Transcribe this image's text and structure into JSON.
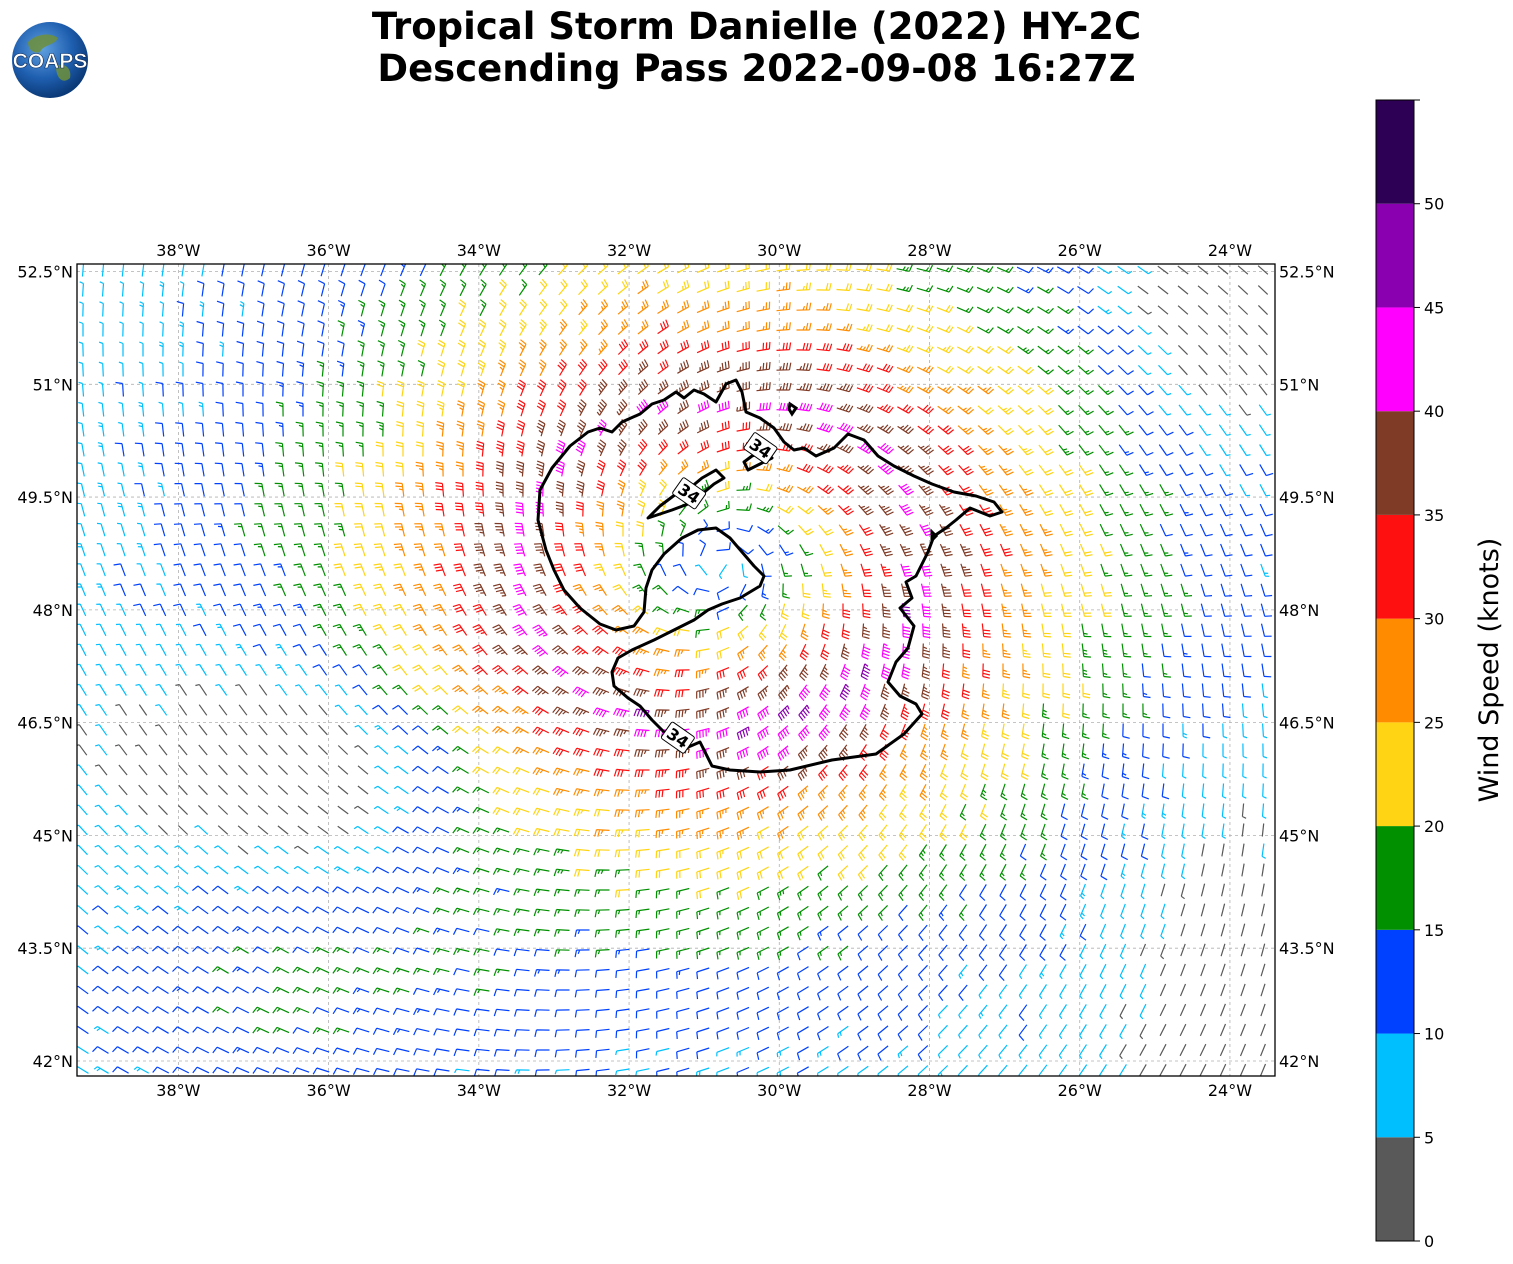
{
  "title": {
    "line1": "Tropical Storm Danielle (2022) HY-2C",
    "line2": "Descending Pass 2022-09-08 16:27Z"
  },
  "logo": {
    "text": "COAPS",
    "icon": "globe-logo-icon"
  },
  "map": {
    "lon_range": [
      -39.35,
      -23.4
    ],
    "lat_range": [
      41.8,
      52.6
    ],
    "lon_ticks": [
      -38,
      -36,
      -34,
      -32,
      -30,
      -28,
      -26,
      -24
    ],
    "lat_ticks": [
      42,
      43.5,
      45,
      46.5,
      48,
      49.5,
      51,
      52.5
    ],
    "lon_labels": [
      "38°W",
      "36°W",
      "34°W",
      "32°W",
      "30°W",
      "28°W",
      "26°W",
      "24°W"
    ],
    "lat_labels": [
      "42°N",
      "43.5°N",
      "45°N",
      "46.5°N",
      "48°N",
      "49.5°N",
      "51°N",
      "52.5°N"
    ],
    "grid": true,
    "storm_center": {
      "lon": -30.8,
      "lat": 48.6
    }
  },
  "contour": {
    "value_label": "34",
    "label_positions": [
      {
        "lon": -30.25,
        "lat": 50.15
      },
      {
        "lon": -31.2,
        "lat": 49.55
      },
      {
        "lon": -31.35,
        "lat": 46.3
      }
    ]
  },
  "colorbar": {
    "label": "Wind Speed (knots)",
    "bounds": [
      0,
      5,
      10,
      15,
      20,
      25,
      30,
      35,
      40,
      45,
      50,
      55
    ],
    "tick_labels": [
      "0",
      "5",
      "10",
      "15",
      "20",
      "25",
      "30",
      "35",
      "40",
      "45",
      "50"
    ],
    "colors": [
      "#595959",
      "#00bfff",
      "#0040ff",
      "#009000",
      "#ffd414",
      "#ff8c00",
      "#ff1010",
      "#803b26",
      "#ff00ff",
      "#8a00b0",
      "#2e0055"
    ]
  }
}
